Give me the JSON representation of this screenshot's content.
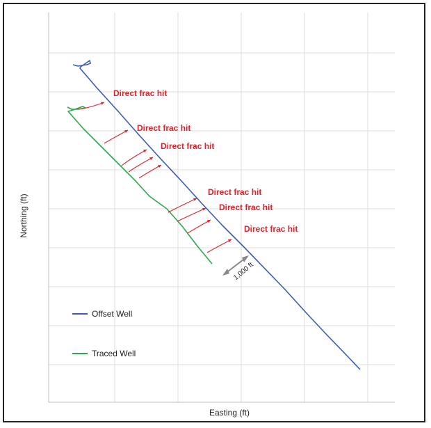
{
  "chart_data": {
    "type": "line",
    "xlabel": "Easting (ft)",
    "ylabel": "Northing (ft)",
    "grid": true,
    "legend_placement": "bottom-left",
    "series": [
      {
        "name": "Offset Well",
        "color": "#3a5bb5",
        "x": [
          105,
          112,
          118,
          125,
          130,
          129,
          116,
          115,
          140,
          170,
          200,
          230,
          260,
          290,
          320,
          350,
          380,
          410,
          440,
          470,
          500,
          518
        ],
        "y": [
          93,
          95,
          94,
          93,
          91,
          87,
          96,
          98,
          127,
          160,
          194,
          227,
          259,
          292,
          324,
          354,
          385,
          416,
          449,
          481,
          512,
          531
        ]
      },
      {
        "name": "Traced Well",
        "color": "#2aa84a",
        "x": [
          97,
          103,
          112,
          118,
          123,
          119,
          102,
          98,
          120,
          145,
          170,
          195,
          215,
          240,
          262,
          285,
          305
        ],
        "y": [
          154,
          157,
          157,
          156,
          155,
          153,
          159,
          160,
          185,
          210,
          235,
          260,
          282,
          300,
          325,
          355,
          379
        ]
      }
    ],
    "annotations": {
      "label": "Direct frac hit",
      "color": "#d9242b",
      "hits": [
        {
          "ax": 113,
          "ay": 157,
          "bx": 150,
          "by": 147,
          "tx": 163,
          "ty": 138
        },
        {
          "ax": 150,
          "ay": 206,
          "bx": 184,
          "by": 187,
          "tx": 197,
          "ty": 188
        },
        {
          "ax": 175,
          "ay": 238,
          "bx": 211,
          "by": 215,
          "tx": 231,
          "ty": 214
        },
        {
          "ax": 185,
          "ay": 247,
          "bx": 220,
          "by": 226,
          "tx": null,
          "ty": null
        },
        {
          "ax": 200,
          "ay": 256,
          "bx": 232,
          "by": 237,
          "tx": null,
          "ty": null
        },
        {
          "ax": 242,
          "ay": 305,
          "bx": 283,
          "by": 285,
          "tx": 299,
          "ty": 280
        },
        {
          "ax": 255,
          "ay": 318,
          "bx": 296,
          "by": 299,
          "tx": 315,
          "ty": 302
        },
        {
          "ax": 270,
          "ay": 335,
          "bx": 303,
          "by": 316,
          "tx": null,
          "ty": null
        },
        {
          "ax": 298,
          "ay": 363,
          "bx": 333,
          "by": 344,
          "tx": 351,
          "ty": 333
        }
      ]
    },
    "scale_bar": {
      "label": "1,000 ft",
      "color": "#888888"
    }
  }
}
